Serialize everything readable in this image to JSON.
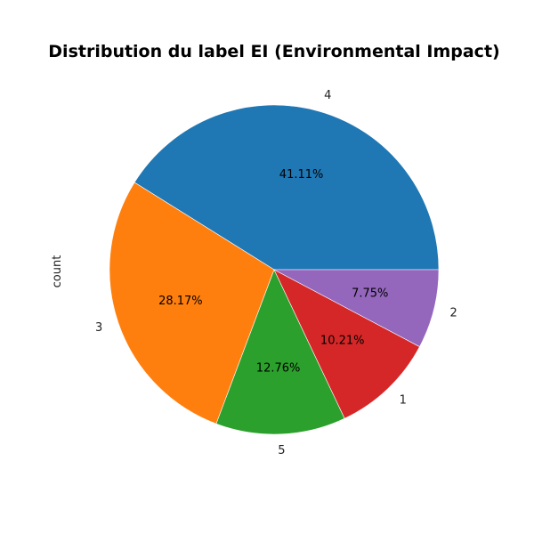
{
  "chart_data": {
    "type": "pie",
    "title": "Distribution du label EI (Environmental Impact)",
    "ylabel": "count",
    "xlabel": "",
    "start_angle_deg": 0,
    "direction": "counterclockwise",
    "slices": [
      {
        "label": "4",
        "value": 41.11,
        "pct_label": "41.11%",
        "color": "#1f77b4"
      },
      {
        "label": "3",
        "value": 28.17,
        "pct_label": "28.17%",
        "color": "#ff7f0e"
      },
      {
        "label": "5",
        "value": 12.76,
        "pct_label": "12.76%",
        "color": "#2ca02c"
      },
      {
        "label": "1",
        "value": 10.21,
        "pct_label": "10.21%",
        "color": "#d62728"
      },
      {
        "label": "2",
        "value": 7.75,
        "pct_label": "7.75%",
        "color": "#9467bd"
      }
    ]
  }
}
